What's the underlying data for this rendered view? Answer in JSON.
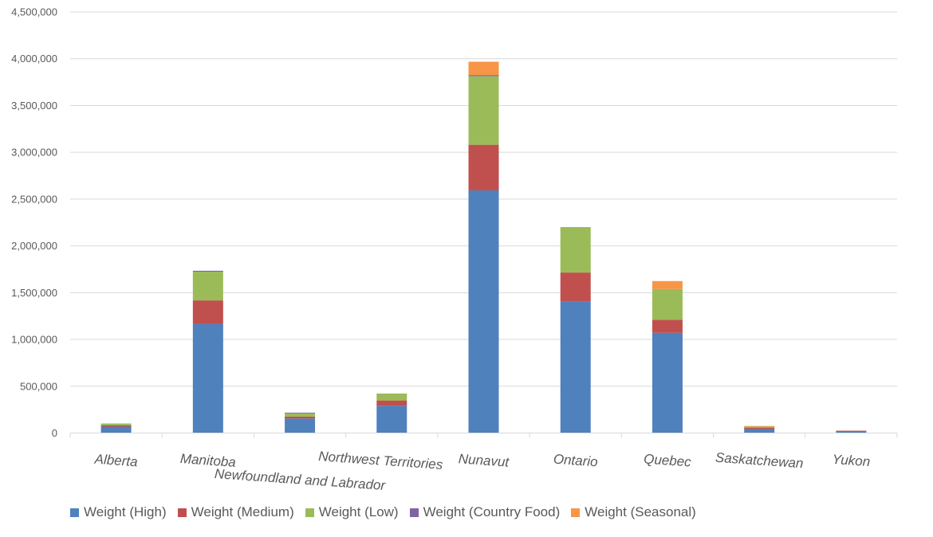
{
  "chart_data": {
    "type": "bar",
    "stacked": true,
    "title": "",
    "xlabel": "",
    "ylabel": "",
    "ylim": [
      0,
      4500000
    ],
    "yticks": [
      0,
      500000,
      1000000,
      1500000,
      2000000,
      2500000,
      3000000,
      3500000,
      4000000,
      4500000
    ],
    "ytick_labels": [
      "0",
      "500,000",
      "1,000,000",
      "1,500,000",
      "2,000,000",
      "2,500,000",
      "3,000,000",
      "3,500,000",
      "4,000,000",
      "4,500,000"
    ],
    "grid": true,
    "legend_position": "bottom",
    "categories": [
      "Alberta",
      "Manitoba",
      "Newfoundland and Labrador",
      "Northwest Territories",
      "Nunavut",
      "Ontario",
      "Quebec",
      "Saskatchewan",
      "Yukon"
    ],
    "series": [
      {
        "name": "Weight (High)",
        "color": "#4f81bd",
        "values": [
          68000,
          1167000,
          155000,
          291000,
          2593000,
          1406000,
          1071000,
          43000,
          22000
        ]
      },
      {
        "name": "Weight (Medium)",
        "color": "#c0504d",
        "values": [
          13000,
          250000,
          20000,
          57000,
          488000,
          309000,
          139000,
          15000,
          3000
        ]
      },
      {
        "name": "Weight (Low)",
        "color": "#9bbb59",
        "values": [
          21000,
          307000,
          35000,
          74000,
          732000,
          486000,
          329000,
          12000,
          0
        ]
      },
      {
        "name": "Weight (Country Food)",
        "color": "#8064a2",
        "values": [
          0,
          10000,
          8000,
          0,
          13000,
          0,
          0,
          0,
          0
        ]
      },
      {
        "name": "Weight (Seasonal)",
        "color": "#f79646",
        "values": [
          0,
          0,
          0,
          0,
          142000,
          0,
          85000,
          5000,
          0
        ]
      }
    ]
  }
}
